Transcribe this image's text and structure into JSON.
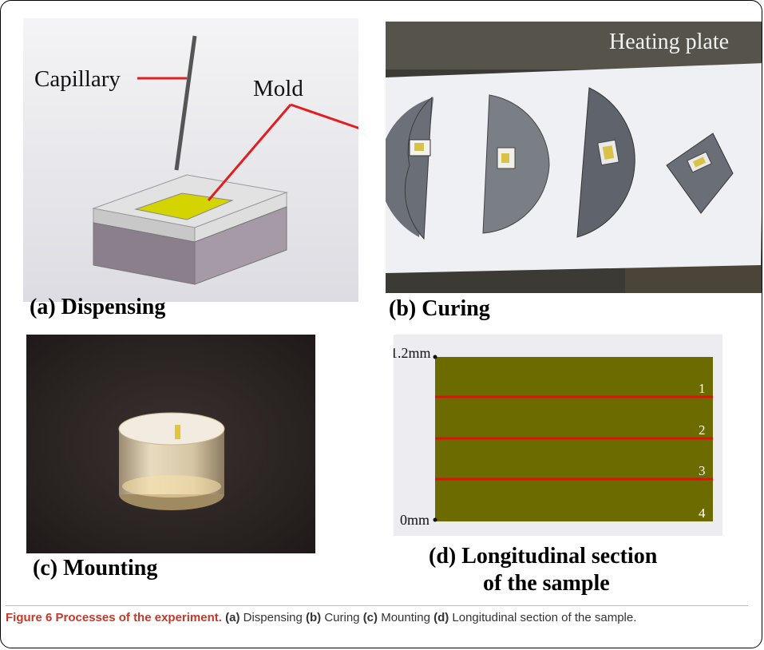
{
  "panels": {
    "a": {
      "label": "(a) Dispensing",
      "callout_capillary": "Capillary",
      "callout_mold": "Mold"
    },
    "b": {
      "label": "(b) Curing",
      "overlay": "Heating plate"
    },
    "c": {
      "label": "(c) Mounting"
    },
    "d": {
      "label_line1": "(d) Longitudinal section",
      "label_line2": "of the sample",
      "top_label": "1.2mm",
      "bottom_label": "0mm",
      "line_labels": [
        "1",
        "2",
        "3",
        "4"
      ]
    }
  },
  "caption": {
    "title": "Figure 6 Processes of the experiment.",
    "parts": [
      {
        "tag": "(a)",
        "text": " Dispensing "
      },
      {
        "tag": "(b)",
        "text": " Curing "
      },
      {
        "tag": "(c)",
        "text": " Mounting "
      },
      {
        "tag": "(d)",
        "text": " Longitudinal section of the sample."
      }
    ]
  },
  "colors": {
    "callout_line": "#e02020",
    "section_fill": "#6b6b00",
    "section_line": "#e01010",
    "mold_top": "#e0e0e0",
    "mold_side": "#8a7c8a",
    "sample_yellow": "#d8d800"
  }
}
